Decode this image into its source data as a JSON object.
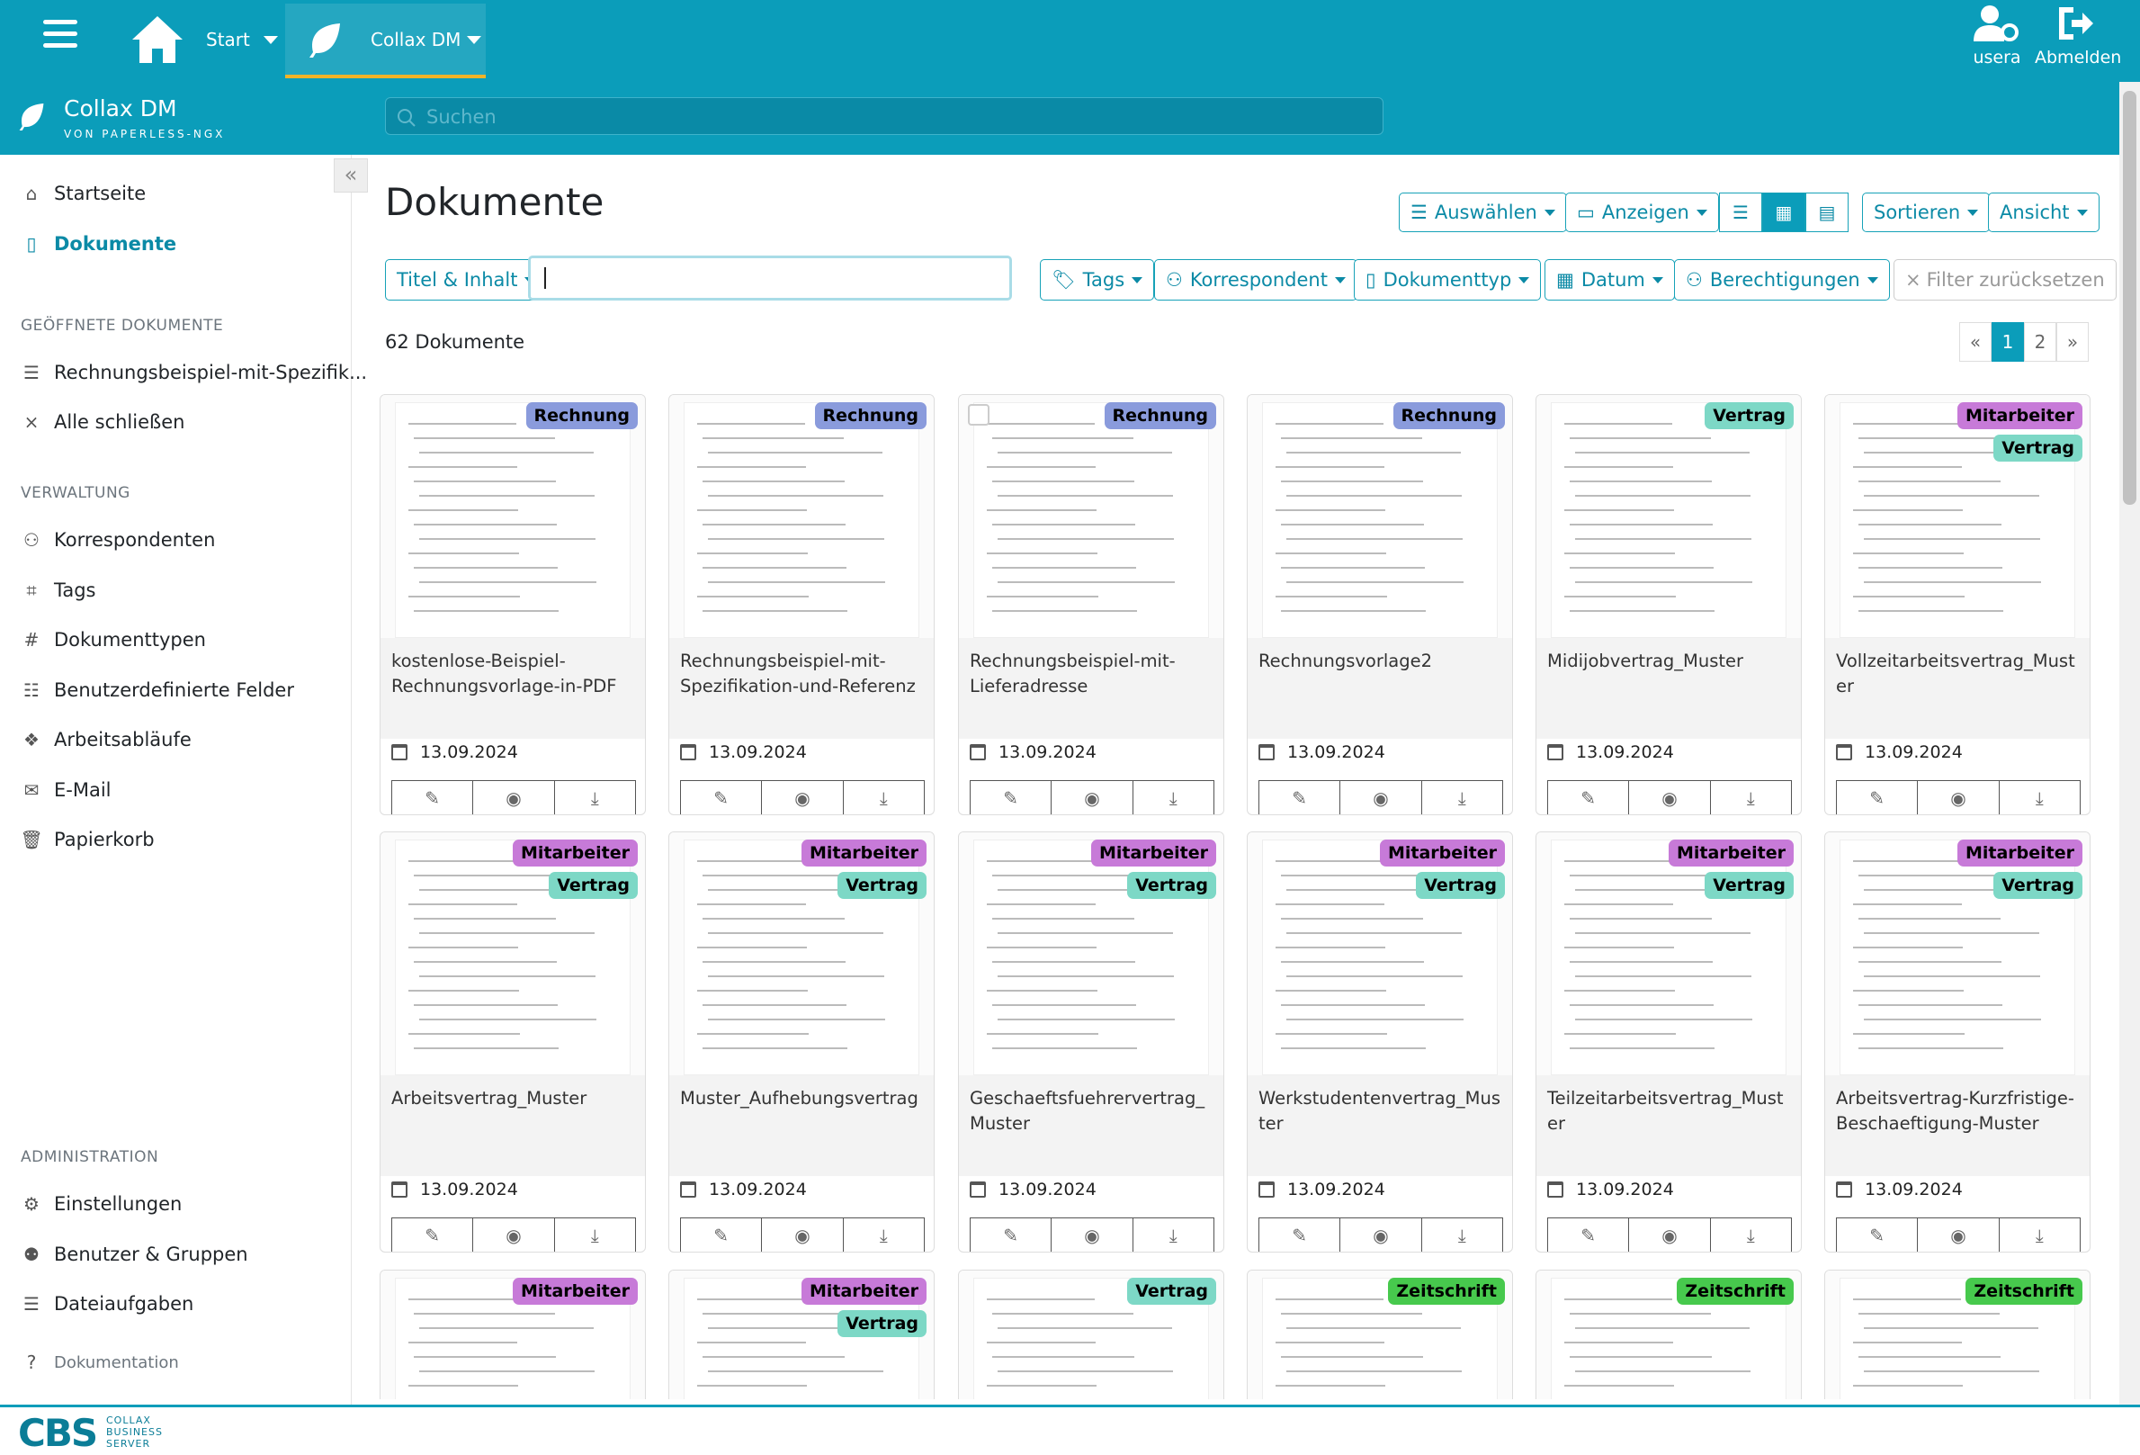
{
  "topbar": {
    "start": "Start",
    "tab": "Collax DM",
    "user": "usera",
    "logout": "Abmelden"
  },
  "header": {
    "app_name": "Collax DM",
    "app_sub": "VON PAPERLESS-NGX",
    "search_placeholder": "Suchen"
  },
  "sidebar": {
    "items": [
      {
        "label": "Startseite",
        "icon": "house-icon"
      },
      {
        "label": "Dokumente",
        "icon": "document-icon"
      }
    ],
    "open_head": "GEÖFFNETE DOKUMENTE",
    "open_items": [
      {
        "label": "Rechnungsbeispiel-mit-Spezifik..."
      },
      {
        "label": "Alle schließen"
      }
    ],
    "admin_head": "VERWALTUNG",
    "admin_items": [
      {
        "label": "Korrespondenten"
      },
      {
        "label": "Tags"
      },
      {
        "label": "Dokumenttypen"
      },
      {
        "label": "Benutzerdefinierte Felder"
      },
      {
        "label": "Arbeitsabläufe"
      },
      {
        "label": "E-Mail"
      },
      {
        "label": "Papierkorb"
      }
    ],
    "sys_head": "ADMINISTRATION",
    "sys_items": [
      {
        "label": "Einstellungen"
      },
      {
        "label": "Benutzer & Gruppen"
      },
      {
        "label": "Dateiaufgaben"
      }
    ],
    "doc_link": "Dokumentation"
  },
  "main": {
    "title": "Dokumente",
    "btn_select": "Auswählen",
    "btn_show": "Anzeigen",
    "btn_sort": "Sortieren",
    "btn_view": "Ansicht",
    "filter_title": "Titel & Inhalt",
    "filter_tags": "Tags",
    "filter_corr": "Korrespondent",
    "filter_type": "Dokumenttyp",
    "filter_date": "Datum",
    "filter_perm": "Berechtigungen",
    "filter_reset": "Filter zurücksetzen",
    "count": "62 Dokumente",
    "pager": [
      "«",
      "1",
      "2",
      "»"
    ]
  },
  "colors": {
    "Rechnung": "#8a9bdc",
    "Vertrag": "#7dd8c6",
    "Mitarbeiter": "#c77ad8",
    "Zeitschrift": "#47c94d"
  },
  "cards": [
    {
      "title": "kostenlose-Beispiel-Rechnungsvorlage-in-PDF",
      "date": "13.09.2024",
      "tags": [
        "Rechnung"
      ]
    },
    {
      "title": "Rechnungsbeispiel-mit-Spezifikation-und-Referenz",
      "date": "13.09.2024",
      "tags": [
        "Rechnung"
      ]
    },
    {
      "title": "Rechnungsbeispiel-mit-Lieferadresse",
      "date": "13.09.2024",
      "tags": [
        "Rechnung"
      ]
    },
    {
      "title": "Rechnungsvorlage2",
      "date": "13.09.2024",
      "tags": [
        "Rechnung"
      ]
    },
    {
      "title": "Midijobvertrag_Muster",
      "date": "13.09.2024",
      "tags": [
        "Vertrag"
      ]
    },
    {
      "title": "Vollzeitarbeitsvertrag_Muster",
      "date": "13.09.2024",
      "tags": [
        "Mitarbeiter",
        "Vertrag"
      ]
    },
    {
      "title": "Arbeitsvertrag_Muster",
      "date": "13.09.2024",
      "tags": [
        "Mitarbeiter",
        "Vertrag"
      ]
    },
    {
      "title": "Muster_Aufhebungsvertrag",
      "date": "13.09.2024",
      "tags": [
        "Mitarbeiter",
        "Vertrag"
      ]
    },
    {
      "title": "Geschaeftsfuehrervertrag_Muster",
      "date": "13.09.2024",
      "tags": [
        "Mitarbeiter",
        "Vertrag"
      ]
    },
    {
      "title": "Werkstudentenvertrag_Muster",
      "date": "13.09.2024",
      "tags": [
        "Mitarbeiter",
        "Vertrag"
      ]
    },
    {
      "title": "Teilzeitarbeitsvertrag_Muster",
      "date": "13.09.2024",
      "tags": [
        "Mitarbeiter",
        "Vertrag"
      ]
    },
    {
      "title": "Arbeitsvertrag-Kurzfristige-Beschaeftigung-Muster",
      "date": "13.09.2024",
      "tags": [
        "Mitarbeiter",
        "Vertrag"
      ]
    },
    {
      "title": "",
      "date": "",
      "tags": [
        "Mitarbeiter"
      ]
    },
    {
      "title": "",
      "date": "",
      "tags": [
        "Mitarbeiter",
        "Vertrag"
      ]
    },
    {
      "title": "",
      "date": "",
      "tags": [
        "Vertrag"
      ]
    },
    {
      "title": "",
      "date": "",
      "tags": [
        "Zeitschrift"
      ]
    },
    {
      "title": "",
      "date": "",
      "tags": [
        "Zeitschrift"
      ]
    },
    {
      "title": "",
      "date": "",
      "tags": [
        "Zeitschrift"
      ]
    }
  ],
  "footer": {
    "logo": "CBS",
    "line1": "COLLAX",
    "line2": "BUSINESS",
    "line3": "SERVER"
  }
}
